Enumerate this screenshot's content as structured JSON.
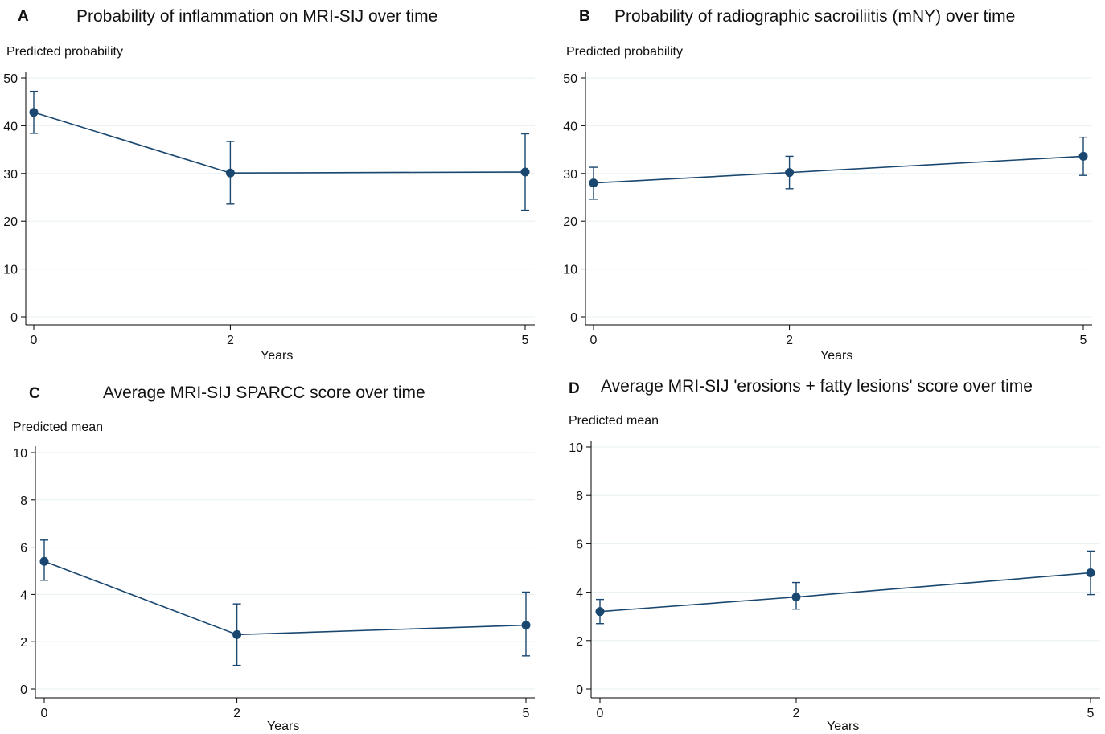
{
  "colors": {
    "series": "#1a476f",
    "grid": "#eaf2f3",
    "axis": "#000000"
  },
  "chart_data": [
    {
      "type": "line",
      "panel": "A",
      "title": "Probability of inflammation on MRI-SIJ over time",
      "ylabel": "Predicted probability",
      "xlabel": "Years",
      "x": [
        0,
        2,
        5
      ],
      "y": [
        42.8,
        30.1,
        30.3
      ],
      "ci_low": [
        38.4,
        23.6,
        22.3
      ],
      "ci_high": [
        47.2,
        36.7,
        38.3
      ],
      "yticks": [
        0,
        10,
        20,
        30,
        40,
        50
      ],
      "xticks": [
        0,
        2,
        5
      ],
      "ylim": [
        0,
        50
      ],
      "grid": true
    },
    {
      "type": "line",
      "panel": "B",
      "title": "Probability of radiographic sacroiliitis (mNY) over time",
      "ylabel": "Predicted probability",
      "xlabel": "Years",
      "x": [
        0,
        2,
        5
      ],
      "y": [
        28.0,
        30.2,
        33.6
      ],
      "ci_low": [
        24.6,
        26.8,
        29.6
      ],
      "ci_high": [
        31.3,
        33.6,
        37.6
      ],
      "yticks": [
        0,
        10,
        20,
        30,
        40,
        50
      ],
      "xticks": [
        0,
        2,
        5
      ],
      "ylim": [
        0,
        50
      ],
      "grid": true
    },
    {
      "type": "line",
      "panel": "C",
      "title": "Average MRI-SIJ SPARCC score over time",
      "ylabel": "Predicted mean",
      "xlabel": "Years",
      "x": [
        0,
        2,
        5
      ],
      "y": [
        5.4,
        2.3,
        2.7
      ],
      "ci_low": [
        4.6,
        1.0,
        1.4
      ],
      "ci_high": [
        6.3,
        3.6,
        4.1
      ],
      "yticks": [
        0,
        2,
        4,
        6,
        8,
        10
      ],
      "xticks": [
        0,
        2,
        5
      ],
      "ylim": [
        0,
        10
      ],
      "grid": true
    },
    {
      "type": "line",
      "panel": "D",
      "title": "Average MRI-SIJ 'erosions + fatty lesions' score over time",
      "ylabel": "Predicted mean",
      "xlabel": "Years",
      "x": [
        0,
        2,
        5
      ],
      "y": [
        3.2,
        3.8,
        4.8
      ],
      "ci_low": [
        2.7,
        3.3,
        3.9
      ],
      "ci_high": [
        3.7,
        4.4,
        5.7
      ],
      "yticks": [
        0,
        2,
        4,
        6,
        8,
        10
      ],
      "xticks": [
        0,
        2,
        5
      ],
      "ylim": [
        0,
        10
      ],
      "grid": true
    }
  ]
}
